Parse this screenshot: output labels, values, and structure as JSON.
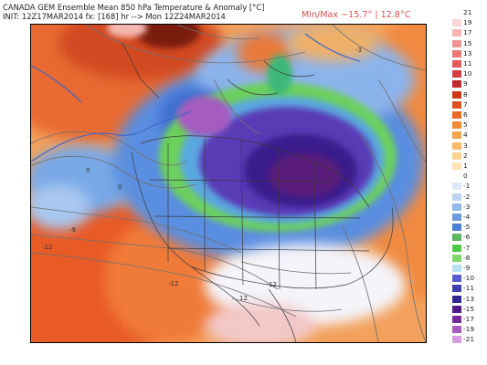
{
  "header": {
    "title": "CANADA GEM Ensemble Mean 850 hPa Temperature & Anomaly [°C]",
    "init_line": "INIT: 12Z17MAR2014 fx: [168] hr --> Mon 12Z24MAR2014",
    "minmax": "Min/Max −15.7° | 12.8°C"
  },
  "map": {
    "contour_labels": [
      "0",
      "0",
      "-3",
      "-9",
      "-12",
      "12",
      "12",
      "-12"
    ]
  },
  "colors": {
    "country_border": "#3a3a3a",
    "contour_line": "#707070",
    "zero_isotherm": "#3c64c8"
  },
  "color_scale": {
    "labels": [
      "21",
      "19",
      "17",
      "15",
      "13",
      "11",
      "10",
      "9",
      "8",
      "7",
      "6",
      "5",
      "4",
      "3",
      "2",
      "1",
      "0",
      "-1",
      "-2",
      "-3",
      "-4",
      "-5",
      "-6",
      "-7",
      "-8",
      "-9",
      "-10",
      "-11",
      "-13",
      "-15",
      "-17",
      "-19",
      "-21"
    ],
    "colors": [
      "#ffffff",
      "#fcd6d6",
      "#f8b4b4",
      "#f39494",
      "#ee7676",
      "#e55a5a",
      "#d44040",
      "#c02a2a",
      "#d03818",
      "#e05020",
      "#ec6a24",
      "#f38a34",
      "#f6a44c",
      "#f8bd6a",
      "#fad48e",
      "#fce4b4",
      "#ffffff",
      "#dce8f8",
      "#bcd4f2",
      "#94b8ea",
      "#6e9ce0",
      "#4c82d6",
      "#5cb860",
      "#4cc848",
      "#7ed868",
      "#b8e2f0",
      "#5a5ad2",
      "#4040b0",
      "#322898",
      "#501888",
      "#742a9a",
      "#a95cc0",
      "#d69ee0"
    ]
  }
}
